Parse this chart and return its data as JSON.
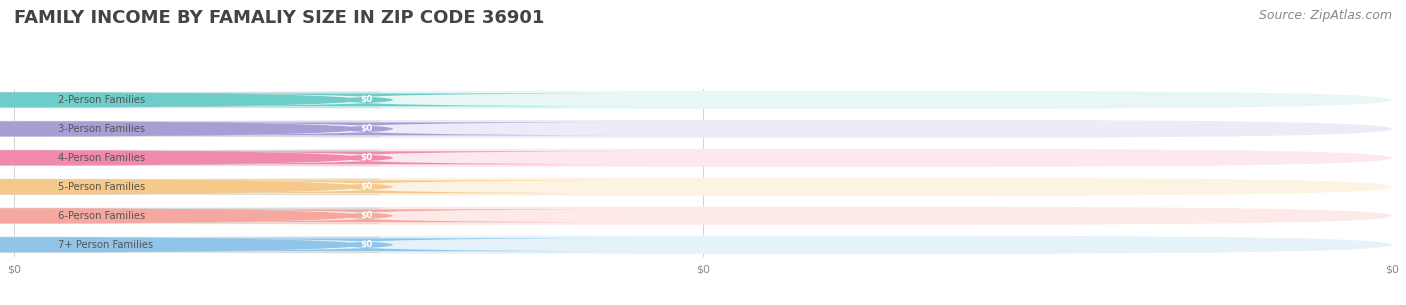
{
  "title": "FAMILY INCOME BY FAMALIY SIZE IN ZIP CODE 36901",
  "source": "Source: ZipAtlas.com",
  "categories": [
    "2-Person Families",
    "3-Person Families",
    "4-Person Families",
    "5-Person Families",
    "6-Person Families",
    "7+ Person Families"
  ],
  "values": [
    0,
    0,
    0,
    0,
    0,
    0
  ],
  "bar_colors": [
    "#6dcdc8",
    "#a89ed4",
    "#f08aaa",
    "#f5c98a",
    "#f5a8a0",
    "#90c4e8"
  ],
  "bar_bg_colors": [
    "#e8f7f6",
    "#eeeaf8",
    "#fce8ef",
    "#fdf3e3",
    "#fdeae8",
    "#e5f2fa"
  ],
  "label_colors": [
    "#6dcdc8",
    "#a89ed4",
    "#f08aaa",
    "#f5c98a",
    "#f5a8a0",
    "#90c4e8"
  ],
  "xlim": [
    0,
    1
  ],
  "background_color": "#ffffff",
  "title_fontsize": 13,
  "source_fontsize": 9,
  "tick_label": "$0",
  "x_tick_positions": [
    0,
    0.5,
    1.0
  ],
  "x_tick_labels": [
    "$0",
    "$0",
    "$0"
  ]
}
